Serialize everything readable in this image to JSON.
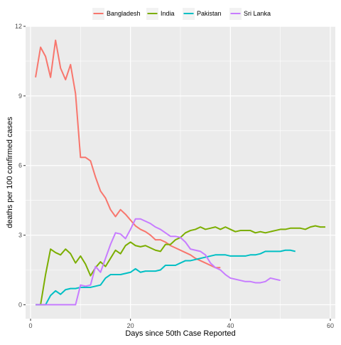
{
  "chart_data": {
    "type": "line",
    "xlabel": "Days since 50th Case Reported",
    "ylabel": "deaths per 100 confirmed cases",
    "xlim": [
      -1,
      61
    ],
    "ylim": [
      -0.6,
      12
    ],
    "x_ticks": [
      0,
      20,
      40,
      60
    ],
    "y_ticks": [
      0,
      3,
      6,
      9,
      12
    ],
    "grid": true,
    "legend_position": "top",
    "series": [
      {
        "name": "Bangladesh",
        "color": "#F8766D",
        "x": [
          1,
          2,
          3,
          4,
          5,
          6,
          7,
          8,
          9,
          10,
          11,
          12,
          13,
          14,
          15,
          16,
          17,
          18,
          19,
          20,
          21,
          22,
          23,
          24,
          25,
          26,
          27,
          28,
          29,
          30,
          31,
          32,
          33,
          34,
          35,
          36,
          37,
          38
        ],
        "y": [
          9.8,
          11.1,
          10.7,
          9.8,
          11.4,
          10.2,
          9.7,
          10.35,
          9.1,
          6.35,
          6.35,
          6.2,
          5.5,
          4.9,
          4.6,
          4.1,
          3.8,
          4.1,
          3.9,
          3.65,
          3.4,
          3.25,
          3.15,
          3.0,
          2.8,
          2.8,
          2.7,
          2.55,
          2.45,
          2.35,
          2.25,
          2.15,
          2.0,
          1.9,
          1.8,
          1.7,
          1.6,
          1.6
        ]
      },
      {
        "name": "India",
        "color": "#7CAE00",
        "x": [
          1,
          2,
          3,
          4,
          5,
          6,
          7,
          8,
          9,
          10,
          11,
          12,
          13,
          14,
          15,
          16,
          17,
          18,
          19,
          20,
          21,
          22,
          23,
          24,
          25,
          26,
          27,
          28,
          29,
          30,
          31,
          32,
          33,
          34,
          35,
          36,
          37,
          38,
          39,
          40,
          41,
          42,
          43,
          44,
          45,
          46,
          47,
          48,
          49,
          50,
          51,
          52,
          53,
          54,
          55,
          56,
          57,
          58,
          59
        ],
        "y": [
          0,
          0,
          1.3,
          2.4,
          2.25,
          2.15,
          2.4,
          2.2,
          1.8,
          2.1,
          1.75,
          1.25,
          1.6,
          1.85,
          1.65,
          2.0,
          2.35,
          2.2,
          2.55,
          2.7,
          2.55,
          2.5,
          2.55,
          2.45,
          2.35,
          2.3,
          2.6,
          2.6,
          2.8,
          2.9,
          3.1,
          3.2,
          3.25,
          3.35,
          3.25,
          3.3,
          3.35,
          3.25,
          3.35,
          3.25,
          3.15,
          3.2,
          3.2,
          3.2,
          3.1,
          3.15,
          3.1,
          3.15,
          3.2,
          3.25,
          3.25,
          3.3,
          3.3,
          3.3,
          3.25,
          3.35,
          3.4,
          3.35,
          3.35
        ]
      },
      {
        "name": "Pakistan",
        "color": "#00BFC4",
        "x": [
          1,
          2,
          3,
          4,
          5,
          6,
          7,
          8,
          9,
          10,
          11,
          12,
          13,
          14,
          15,
          16,
          17,
          18,
          19,
          20,
          21,
          22,
          23,
          24,
          25,
          26,
          27,
          28,
          29,
          30,
          31,
          32,
          33,
          34,
          35,
          36,
          37,
          38,
          39,
          40,
          41,
          42,
          43,
          44,
          45,
          46,
          47,
          48,
          49,
          50,
          51,
          52,
          53
        ],
        "y": [
          0,
          0,
          0,
          0.4,
          0.6,
          0.45,
          0.65,
          0.7,
          0.7,
          0.75,
          0.75,
          0.75,
          0.8,
          0.85,
          1.15,
          1.3,
          1.3,
          1.3,
          1.35,
          1.4,
          1.55,
          1.4,
          1.45,
          1.45,
          1.45,
          1.5,
          1.7,
          1.7,
          1.7,
          1.8,
          1.9,
          1.9,
          1.95,
          2.0,
          2.05,
          2.1,
          2.15,
          2.15,
          2.15,
          2.1,
          2.1,
          2.1,
          2.1,
          2.15,
          2.15,
          2.2,
          2.3,
          2.3,
          2.3,
          2.3,
          2.35,
          2.35,
          2.3
        ]
      },
      {
        "name": "Sri Lanka",
        "color": "#C77CFF",
        "x": [
          1,
          2,
          3,
          4,
          5,
          6,
          7,
          8,
          9,
          10,
          11,
          12,
          13,
          14,
          15,
          16,
          17,
          18,
          19,
          20,
          21,
          22,
          23,
          24,
          25,
          26,
          27,
          28,
          29,
          30,
          31,
          32,
          33,
          34,
          35,
          36,
          37,
          38,
          39,
          40,
          41,
          42,
          43,
          44,
          45,
          46,
          47,
          48,
          49,
          50
        ],
        "y": [
          0,
          0,
          0,
          0,
          0,
          0,
          0,
          0,
          0,
          0.85,
          0.8,
          0.85,
          1.65,
          1.4,
          2.0,
          2.6,
          3.1,
          3.05,
          2.85,
          3.25,
          3.7,
          3.7,
          3.6,
          3.5,
          3.35,
          3.25,
          3.1,
          2.95,
          2.95,
          2.9,
          2.7,
          2.4,
          2.35,
          2.3,
          2.15,
          1.8,
          1.6,
          1.5,
          1.3,
          1.15,
          1.1,
          1.05,
          1.0,
          1.0,
          0.95,
          0.95,
          1.0,
          1.15,
          1.1,
          1.05
        ]
      }
    ]
  }
}
